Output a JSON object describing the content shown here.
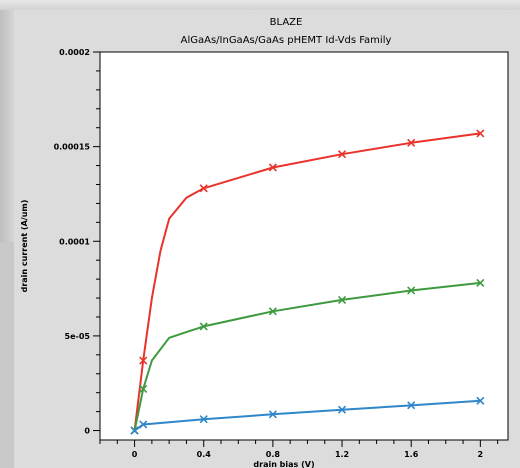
{
  "window": {
    "title": "BLAZE"
  },
  "chart_data": {
    "type": "line",
    "title": "AlGaAs/InGaAs/GaAs pHEMT Id-Vds Family",
    "xlabel": "drain bias (V)",
    "ylabel": "drain current (A/um)",
    "xlim": [
      -0.2,
      2.16
    ],
    "ylim": [
      -5e-06,
      0.0002
    ],
    "xticks": [
      0,
      0.4,
      0.8,
      1.2,
      1.6,
      2
    ],
    "xtick_labels": [
      "0",
      "0.4",
      "0.8",
      "1.2",
      "1.6",
      "2"
    ],
    "yticks": [
      0,
      5e-05,
      0.0001,
      0.00015,
      0.0002
    ],
    "ytick_labels": [
      "0",
      "5e-05",
      "0.0001",
      "0.00015",
      "0.0002"
    ],
    "grid": false,
    "legend": "none",
    "series": [
      {
        "color": "#e8322a",
        "x": [
          0,
          0.05,
          0.1,
          0.15,
          0.2,
          0.3,
          0.4,
          0.8,
          1.2,
          1.6,
          2.0
        ],
        "y": [
          0,
          3.7e-05,
          7e-05,
          9.5e-05,
          0.000112,
          0.000123,
          0.000128,
          0.000139,
          0.000146,
          0.000152,
          0.000157
        ],
        "markers_at": [
          0,
          0.05,
          0.4,
          0.8,
          1.2,
          1.6,
          2.0
        ]
      },
      {
        "color": "#3e9a3e",
        "x": [
          0,
          0.05,
          0.1,
          0.2,
          0.3,
          0.4,
          0.8,
          1.2,
          1.6,
          2.0
        ],
        "y": [
          0,
          2.2e-05,
          3.7e-05,
          4.9e-05,
          5.2e-05,
          5.5e-05,
          6.3e-05,
          6.9e-05,
          7.4e-05,
          7.8e-05
        ],
        "markers_at": [
          0,
          0.05,
          0.4,
          0.8,
          1.2,
          1.6,
          2.0
        ]
      },
      {
        "color": "#2f86c8",
        "x": [
          0,
          0.05,
          0.4,
          0.8,
          1.2,
          1.6,
          2.0
        ],
        "y": [
          0,
          3.2e-06,
          6e-06,
          8.6e-06,
          1.1e-05,
          1.33e-05,
          1.57e-05
        ],
        "markers_at": [
          0,
          0.05,
          0.4,
          0.8,
          1.2,
          1.6,
          2.0
        ]
      }
    ]
  }
}
